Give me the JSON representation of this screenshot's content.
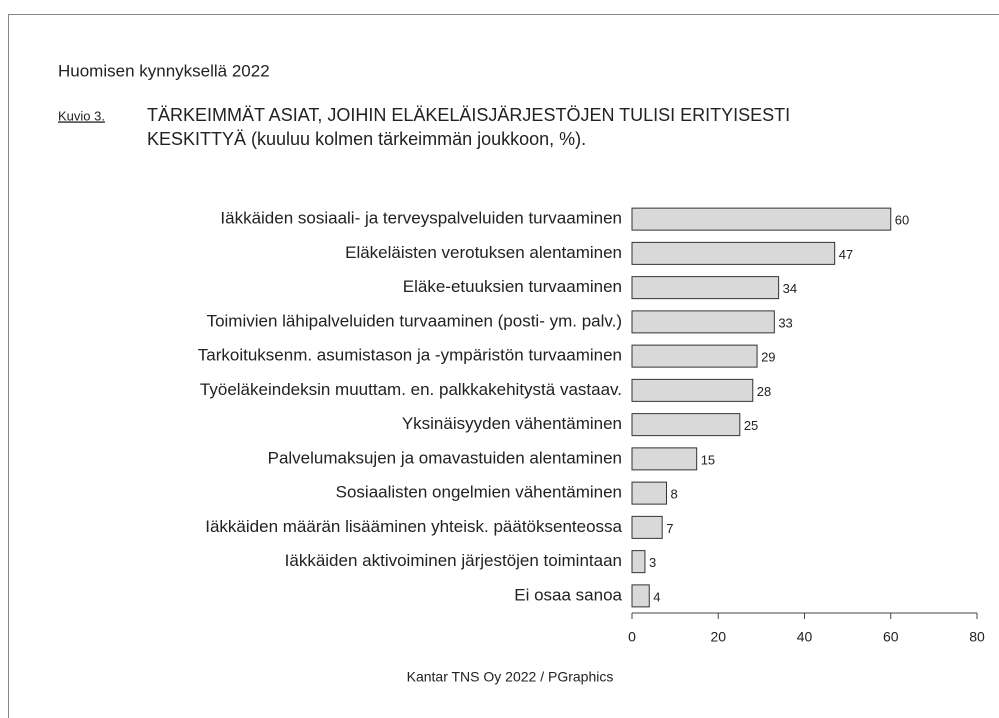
{
  "chart_data": {
    "type": "bar",
    "orientation": "horizontal",
    "header": "Huomisen kynnyksellä 2022",
    "figure_label": "Kuvio 3.",
    "title": [
      "TÄRKEIMMÄT ASIAT, JOIHIN ELÄKELÄISJÄRJESTÖJEN TULISI ERITYISESTI",
      "KESKITTYÄ (kuuluu kolmen tärkeimmän joukkoon, %)."
    ],
    "categories": [
      "Iäkkäiden sosiaali- ja terveyspalveluiden turvaaminen",
      "Eläkeläisten verotuksen alentaminen",
      "Eläke-etuuksien turvaaminen",
      "Toimivien lähipalveluiden turvaaminen (posti- ym. palv.)",
      "Tarkoituksenm. asumistason ja -ympäristön turvaaminen",
      "Työeläkeindeksin muuttam. en. palkkakehitystä vastaav.",
      "Yksinäisyyden vähentäminen",
      "Palvelumaksujen ja omavastuiden alentaminen",
      "Sosiaalisten ongelmien vähentäminen",
      "Iäkkäiden määrän lisääminen yhteisk. päätöksenteossa",
      "Iäkkäiden aktivoiminen järjestöjen toimintaan",
      "Ei osaa sanoa"
    ],
    "values": [
      60,
      47,
      34,
      33,
      29,
      28,
      25,
      15,
      8,
      7,
      3,
      4
    ],
    "color": "#d9d9d9",
    "xlim": [
      0,
      80
    ],
    "xticks": [
      0,
      20,
      40,
      60,
      80
    ],
    "source": "Kantar TNS Oy 2022 / PGraphics"
  }
}
